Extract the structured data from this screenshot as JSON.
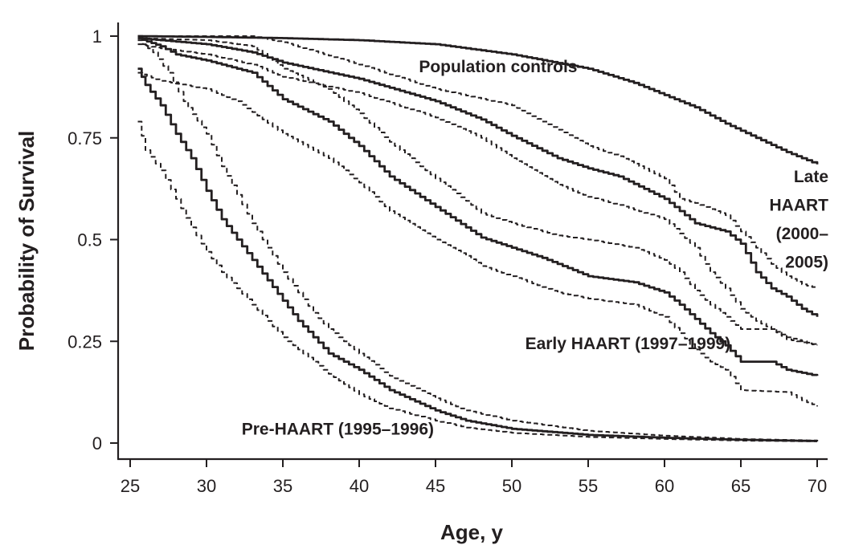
{
  "chart_data": {
    "type": "line",
    "title": "",
    "xlabel": "Age, y",
    "ylabel": "Probability of Survival",
    "xlim": [
      25,
      70
    ],
    "ylim": [
      0,
      1
    ],
    "xticks": [
      25,
      30,
      35,
      40,
      45,
      50,
      55,
      60,
      65,
      70
    ],
    "xtick_labels": [
      "25",
      "30",
      "35",
      "40",
      "45",
      "50",
      "55",
      "60",
      "65",
      "70"
    ],
    "yticks": [
      0,
      0.25,
      0.5,
      0.75,
      1
    ],
    "ytick_labels": [
      "0",
      "0.25",
      "0.5",
      "0.75",
      "1"
    ],
    "grid": false,
    "annotations": [
      {
        "text": "Population controls",
        "x": 49.1,
        "y": 0.925
      },
      {
        "text": "Late",
        "x": 70,
        "y": 0.655
      },
      {
        "text": "HAART",
        "x": 70,
        "y": 0.585
      },
      {
        "text": "(2000–",
        "x": 70,
        "y": 0.515
      },
      {
        "text": "2005)",
        "x": 70,
        "y": 0.445
      },
      {
        "text": "Early HAART (1997–1999)",
        "x": 57.6,
        "y": 0.245
      },
      {
        "text": "Pre-HAART (1995–1996)",
        "x": 38.6,
        "y": 0.035
      }
    ],
    "series": [
      {
        "style": "solid",
        "points": [
          [
            25.5,
            1.0
          ],
          [
            30,
            0.998
          ],
          [
            35,
            0.995
          ],
          [
            40,
            0.99
          ],
          [
            45,
            0.98
          ],
          [
            50,
            0.955
          ],
          [
            55,
            0.92
          ],
          [
            58,
            0.885
          ],
          [
            60,
            0.855
          ],
          [
            62,
            0.825
          ],
          [
            64,
            0.785
          ],
          [
            66,
            0.75
          ],
          [
            68,
            0.715
          ],
          [
            70,
            0.685
          ]
        ]
      },
      {
        "style": "solid",
        "points": [
          [
            25.5,
            0.995
          ],
          [
            27,
            0.99
          ],
          [
            30,
            0.98
          ],
          [
            33,
            0.96
          ],
          [
            35,
            0.935
          ],
          [
            40,
            0.895
          ],
          [
            45,
            0.84
          ],
          [
            48,
            0.795
          ],
          [
            50,
            0.755
          ],
          [
            53,
            0.7
          ],
          [
            55,
            0.675
          ],
          [
            57,
            0.655
          ],
          [
            60,
            0.6
          ],
          [
            62,
            0.54
          ],
          [
            64,
            0.52
          ],
          [
            65,
            0.49
          ],
          [
            66,
            0.42
          ],
          [
            67,
            0.38
          ],
          [
            68,
            0.36
          ],
          [
            69,
            0.33
          ],
          [
            70,
            0.31
          ]
        ]
      },
      {
        "style": "dashed",
        "points": [
          [
            25.5,
            1.0
          ],
          [
            30,
            1.0
          ],
          [
            33,
            1.0
          ],
          [
            35,
            0.985
          ],
          [
            40,
            0.93
          ],
          [
            45,
            0.87
          ],
          [
            50,
            0.83
          ],
          [
            53,
            0.77
          ],
          [
            55,
            0.73
          ],
          [
            57,
            0.705
          ],
          [
            60,
            0.65
          ],
          [
            61,
            0.6
          ],
          [
            62,
            0.59
          ],
          [
            64,
            0.56
          ],
          [
            65,
            0.52
          ],
          [
            66,
            0.48
          ],
          [
            67,
            0.44
          ],
          [
            68,
            0.41
          ],
          [
            69,
            0.39
          ],
          [
            70,
            0.38
          ]
        ]
      },
      {
        "style": "dashed",
        "points": [
          [
            25.5,
            0.98
          ],
          [
            27,
            0.97
          ],
          [
            30,
            0.955
          ],
          [
            33,
            0.93
          ],
          [
            35,
            0.9
          ],
          [
            40,
            0.86
          ],
          [
            45,
            0.8
          ],
          [
            48,
            0.75
          ],
          [
            50,
            0.7
          ],
          [
            53,
            0.635
          ],
          [
            55,
            0.605
          ],
          [
            57,
            0.585
          ],
          [
            60,
            0.55
          ],
          [
            62,
            0.48
          ],
          [
            63,
            0.42
          ],
          [
            64,
            0.38
          ],
          [
            65,
            0.33
          ],
          [
            66,
            0.3
          ],
          [
            67,
            0.28
          ],
          [
            68,
            0.255
          ],
          [
            70,
            0.24
          ]
        ]
      },
      {
        "style": "solid",
        "points": [
          [
            25.5,
            0.995
          ],
          [
            27,
            0.975
          ],
          [
            28,
            0.955
          ],
          [
            30,
            0.94
          ],
          [
            33,
            0.91
          ],
          [
            35,
            0.845
          ],
          [
            38,
            0.79
          ],
          [
            40,
            0.73
          ],
          [
            42,
            0.655
          ],
          [
            45,
            0.58
          ],
          [
            47,
            0.53
          ],
          [
            48,
            0.505
          ],
          [
            50,
            0.48
          ],
          [
            52,
            0.455
          ],
          [
            53,
            0.44
          ],
          [
            55,
            0.41
          ],
          [
            58,
            0.395
          ],
          [
            60,
            0.37
          ],
          [
            61,
            0.34
          ],
          [
            62,
            0.305
          ],
          [
            63,
            0.27
          ],
          [
            64,
            0.24
          ],
          [
            65,
            0.2
          ],
          [
            67,
            0.2
          ],
          [
            68,
            0.18
          ],
          [
            70,
            0.165
          ]
        ]
      },
      {
        "style": "dashed",
        "points": [
          [
            25.5,
            0.995
          ],
          [
            30,
            0.99
          ],
          [
            33,
            0.975
          ],
          [
            35,
            0.92
          ],
          [
            38,
            0.87
          ],
          [
            40,
            0.81
          ],
          [
            42,
            0.74
          ],
          [
            45,
            0.65
          ],
          [
            47,
            0.595
          ],
          [
            48,
            0.565
          ],
          [
            50,
            0.54
          ],
          [
            53,
            0.51
          ],
          [
            55,
            0.5
          ],
          [
            58,
            0.48
          ],
          [
            60,
            0.45
          ],
          [
            61,
            0.42
          ],
          [
            62,
            0.375
          ],
          [
            63,
            0.34
          ],
          [
            64,
            0.31
          ],
          [
            65,
            0.28
          ],
          [
            67,
            0.28
          ],
          [
            68,
            0.26
          ],
          [
            70,
            0.24
          ]
        ]
      },
      {
        "style": "dashed",
        "points": [
          [
            25.5,
            0.91
          ],
          [
            27,
            0.89
          ],
          [
            30,
            0.87
          ],
          [
            32,
            0.84
          ],
          [
            35,
            0.76
          ],
          [
            38,
            0.7
          ],
          [
            40,
            0.64
          ],
          [
            42,
            0.57
          ],
          [
            45,
            0.5
          ],
          [
            47,
            0.46
          ],
          [
            48,
            0.435
          ],
          [
            50,
            0.41
          ],
          [
            53,
            0.37
          ],
          [
            55,
            0.355
          ],
          [
            58,
            0.34
          ],
          [
            60,
            0.31
          ],
          [
            61,
            0.27
          ],
          [
            62,
            0.23
          ],
          [
            63,
            0.2
          ],
          [
            64,
            0.18
          ],
          [
            65,
            0.13
          ],
          [
            68,
            0.125
          ],
          [
            69,
            0.105
          ],
          [
            70,
            0.09
          ]
        ]
      },
      {
        "style": "solid",
        "points": [
          [
            25.5,
            0.92
          ],
          [
            26,
            0.88
          ],
          [
            27,
            0.83
          ],
          [
            28,
            0.76
          ],
          [
            29,
            0.7
          ],
          [
            30,
            0.62
          ],
          [
            31,
            0.55
          ],
          [
            32,
            0.5
          ],
          [
            33,
            0.45
          ],
          [
            34,
            0.4
          ],
          [
            35,
            0.35
          ],
          [
            36,
            0.3
          ],
          [
            37,
            0.26
          ],
          [
            38,
            0.22
          ],
          [
            40,
            0.18
          ],
          [
            42,
            0.13
          ],
          [
            45,
            0.08
          ],
          [
            47,
            0.055
          ],
          [
            50,
            0.035
          ],
          [
            55,
            0.02
          ],
          [
            60,
            0.013
          ],
          [
            65,
            0.008
          ],
          [
            70,
            0.005
          ]
        ]
      },
      {
        "style": "dashed",
        "points": [
          [
            25.5,
            0.99
          ],
          [
            26.5,
            0.96
          ],
          [
            27.5,
            0.91
          ],
          [
            28.5,
            0.84
          ],
          [
            30,
            0.76
          ],
          [
            31,
            0.68
          ],
          [
            32,
            0.61
          ],
          [
            33,
            0.54
          ],
          [
            34,
            0.48
          ],
          [
            35,
            0.42
          ],
          [
            36,
            0.37
          ],
          [
            37,
            0.32
          ],
          [
            38,
            0.28
          ],
          [
            40,
            0.22
          ],
          [
            42,
            0.165
          ],
          [
            45,
            0.11
          ],
          [
            47,
            0.08
          ],
          [
            50,
            0.055
          ],
          [
            55,
            0.03
          ],
          [
            60,
            0.018
          ],
          [
            65,
            0.01
          ],
          [
            70,
            0.006
          ]
        ]
      },
      {
        "style": "dashed",
        "points": [
          [
            25.5,
            0.79
          ],
          [
            26,
            0.72
          ],
          [
            27,
            0.67
          ],
          [
            28,
            0.6
          ],
          [
            29,
            0.53
          ],
          [
            30,
            0.47
          ],
          [
            31,
            0.42
          ],
          [
            32,
            0.38
          ],
          [
            33,
            0.34
          ],
          [
            34,
            0.3
          ],
          [
            35,
            0.26
          ],
          [
            36,
            0.23
          ],
          [
            37,
            0.2
          ],
          [
            38,
            0.17
          ],
          [
            40,
            0.12
          ],
          [
            42,
            0.085
          ],
          [
            45,
            0.055
          ],
          [
            47,
            0.038
          ],
          [
            50,
            0.025
          ],
          [
            55,
            0.015
          ],
          [
            60,
            0.01
          ],
          [
            65,
            0.006
          ],
          [
            70,
            0.004
          ]
        ]
      }
    ]
  }
}
